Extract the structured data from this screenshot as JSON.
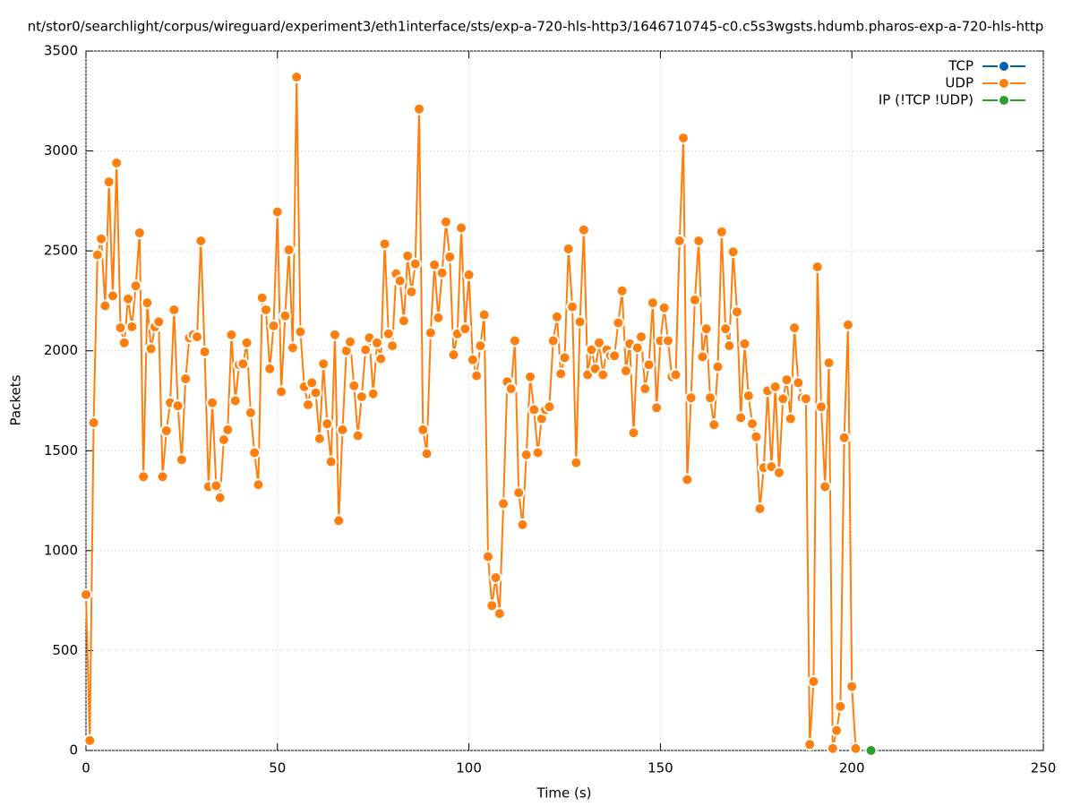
{
  "chart_data": {
    "type": "line",
    "title": "nt/stor0/searchlight/corpus/wireguard/experiment3/eth1interface/sts/exp-a-720-hls-http3/1646710745-c0.c5s3wgsts.hdumb.pharos-exp-a-720-hls-http",
    "x_label": "Time (s)",
    "y_label": "Packets",
    "xlim": [
      0,
      250
    ],
    "xticks": [
      0,
      50,
      100,
      150,
      200,
      250
    ],
    "ylim": [
      0,
      3500
    ],
    "yticks": [
      0,
      500,
      1000,
      1500,
      2000,
      2500,
      3000,
      3500
    ],
    "grid": true,
    "legend": "top-right",
    "series": [
      {
        "name": "TCP",
        "color": "#0060ad",
        "x": [],
        "values": []
      },
      {
        "name": "UDP",
        "color": "#ff7f0e",
        "x": [
          0,
          1,
          2,
          3,
          4,
          5,
          6,
          7,
          8,
          9,
          10,
          11,
          12,
          13,
          14,
          15,
          16,
          17,
          18,
          19,
          20,
          21,
          22,
          23,
          24,
          25,
          26,
          27,
          28,
          29,
          30,
          31,
          32,
          33,
          34,
          35,
          36,
          37,
          38,
          39,
          40,
          41,
          42,
          43,
          44,
          45,
          46,
          47,
          48,
          49,
          50,
          51,
          52,
          53,
          54,
          55,
          56,
          57,
          58,
          59,
          60,
          61,
          62,
          63,
          64,
          65,
          66,
          67,
          68,
          69,
          70,
          71,
          72,
          73,
          74,
          75,
          76,
          77,
          78,
          79,
          80,
          81,
          82,
          83,
          84,
          85,
          86,
          87,
          88,
          89,
          90,
          91,
          92,
          93,
          94,
          95,
          96,
          97,
          98,
          99,
          100,
          101,
          102,
          103,
          104,
          105,
          106,
          107,
          108,
          109,
          110,
          111,
          112,
          113,
          114,
          115,
          116,
          117,
          118,
          119,
          120,
          121,
          122,
          123,
          124,
          125,
          126,
          127,
          128,
          129,
          130,
          131,
          132,
          133,
          134,
          135,
          136,
          137,
          138,
          139,
          140,
          141,
          142,
          143,
          144,
          145,
          146,
          147,
          148,
          149,
          150,
          151,
          152,
          153,
          154,
          155,
          156,
          157,
          158,
          159,
          160,
          161,
          162,
          163,
          164,
          165,
          166,
          167,
          168,
          169,
          170,
          171,
          172,
          173,
          174,
          175,
          176,
          177,
          178,
          179,
          180,
          181,
          182,
          183,
          184,
          185,
          186,
          187,
          188,
          189,
          190,
          191,
          192,
          193,
          194,
          195,
          196,
          197,
          198,
          199,
          200,
          201
        ],
        "values": [
          780,
          50,
          1640,
          2480,
          2560,
          2225,
          2845,
          2275,
          2940,
          2115,
          2040,
          2260,
          2120,
          2325,
          2590,
          1370,
          2240,
          2010,
          2120,
          2145,
          1370,
          1600,
          1740,
          2205,
          1725,
          1455,
          1860,
          2065,
          2080,
          2070,
          2550,
          1995,
          1320,
          1740,
          1325,
          1265,
          1555,
          1605,
          2080,
          1750,
          1930,
          1935,
          2040,
          1690,
          1490,
          1330,
          2265,
          2205,
          1910,
          2125,
          2695,
          1795,
          2175,
          2505,
          2015,
          3370,
          2095,
          1820,
          1730,
          1840,
          1790,
          1560,
          1935,
          1635,
          1445,
          2080,
          1150,
          1605,
          2000,
          2045,
          1825,
          1575,
          1770,
          2005,
          2065,
          1785,
          2040,
          1960,
          2535,
          2085,
          2025,
          2385,
          2350,
          2150,
          2475,
          2295,
          2435,
          3210,
          1605,
          1485,
          2090,
          2430,
          2165,
          2390,
          2645,
          2470,
          1980,
          2085,
          2615,
          2110,
          2380,
          1955,
          1875,
          2025,
          2180,
          970,
          725,
          865,
          685,
          1235,
          1845,
          1810,
          2050,
          1290,
          1130,
          1480,
          1870,
          1705,
          1490,
          1660,
          1705,
          1720,
          2050,
          2170,
          1885,
          1965,
          2510,
          2220,
          1440,
          2145,
          2605,
          1880,
          2005,
          1910,
          2040,
          1880,
          2005,
          1975,
          1975,
          2140,
          2300,
          1900,
          2035,
          1590,
          2015,
          2070,
          1810,
          1930,
          2240,
          1715,
          2050,
          2215,
          2050,
          1870,
          1880,
          2550,
          3065,
          1355,
          1765,
          2255,
          2550,
          1970,
          2110,
          1765,
          1630,
          1920,
          2595,
          2110,
          2025,
          2495,
          2195,
          1665,
          2035,
          1775,
          1635,
          1570,
          1210,
          1415,
          1800,
          1420,
          1820,
          1390,
          1760,
          1855,
          1660,
          2115,
          1840,
          1765,
          1760,
          30,
          345,
          2420,
          1720,
          1320,
          1940,
          10,
          100,
          220,
          1565,
          2130,
          320,
          10
        ]
      },
      {
        "name": "IP (!TCP  !UDP)",
        "color": "#2ca02c",
        "x": [
          205
        ],
        "values": [
          0
        ]
      }
    ]
  }
}
